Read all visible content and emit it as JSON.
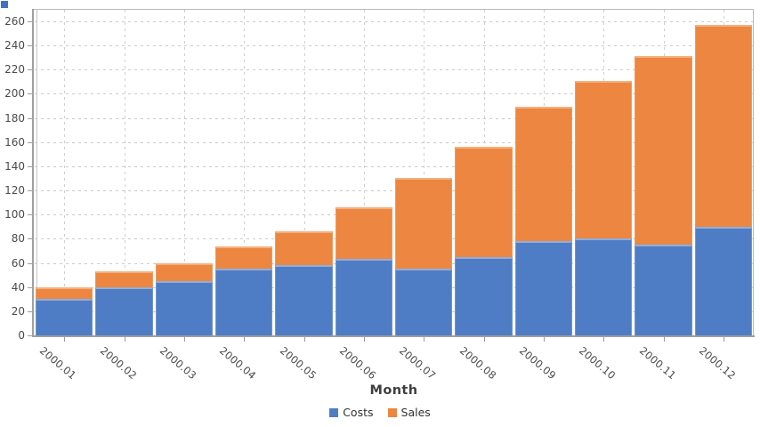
{
  "app_icon": {
    "color": "#4173c8"
  },
  "chart_data": {
    "type": "bar",
    "stacked": true,
    "title": "",
    "xlabel": "Month",
    "ylabel": "",
    "categories": [
      "2000.01",
      "2000.02",
      "2000.03",
      "2000.04",
      "2000.05",
      "2000.06",
      "2000.07",
      "2000.08",
      "2000.09",
      "2000.10",
      "2000.11",
      "2000.12"
    ],
    "series": [
      {
        "name": "Costs",
        "color": "#4f7dc5",
        "values": [
          30,
          40,
          45,
          55,
          58,
          63,
          55,
          65,
          78,
          80,
          75,
          90
        ]
      },
      {
        "name": "Sales",
        "color": "#ec8640",
        "values": [
          10,
          13,
          15,
          19,
          28,
          43,
          75,
          91,
          111,
          131,
          156,
          167
        ]
      }
    ],
    "stack_totals": [
      40,
      53,
      60,
      74,
      86,
      106,
      130,
      156,
      189,
      211,
      231,
      257
    ],
    "ylim": [
      0,
      270
    ],
    "yticks": [
      0,
      20,
      40,
      60,
      80,
      100,
      120,
      140,
      160,
      180,
      200,
      220,
      240,
      260
    ],
    "grid": "dashed horizontal and vertical",
    "legend_position": "bottom"
  }
}
